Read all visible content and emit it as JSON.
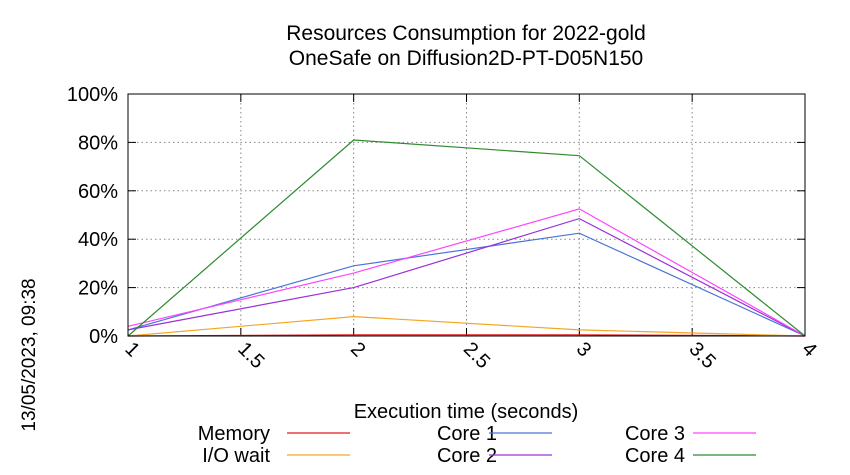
{
  "chart_data": {
    "type": "line",
    "title": "Resources Consumption for 2022-gold",
    "subtitle": "OneSafe on Diffusion2D-PT-D05N150",
    "timestamp": "13/05/2023, 09:38",
    "xlabel": "Execution time (seconds)",
    "ylabel": "",
    "xlim": [
      1,
      4
    ],
    "ylim": [
      0,
      100
    ],
    "x_ticks": [
      1,
      1.5,
      2,
      2.5,
      3,
      3.5,
      4
    ],
    "x_tick_labels": [
      "1",
      "1.5",
      "2",
      "2.5",
      "3",
      "3.5",
      "4"
    ],
    "y_ticks": [
      0,
      20,
      40,
      60,
      80,
      100
    ],
    "y_tick_labels": [
      "0%",
      "20%",
      "40%",
      "60%",
      "80%",
      "100%"
    ],
    "grid": true,
    "legend_position": "bottom",
    "x": [
      1,
      2,
      3,
      4
    ],
    "series": [
      {
        "name": "Memory",
        "color": "#e41a1c",
        "values": [
          0,
          0.5,
          0.5,
          0
        ]
      },
      {
        "name": "I/O wait",
        "color": "#f5a623",
        "values": [
          0,
          8,
          2.5,
          0
        ]
      },
      {
        "name": "Core 1",
        "color": "#4a74d8",
        "values": [
          2.5,
          29,
          42.5,
          0
        ]
      },
      {
        "name": "Core 2",
        "color": "#9b30d9",
        "values": [
          2.5,
          20,
          48.5,
          0
        ]
      },
      {
        "name": "Core 3",
        "color": "#ff44ff",
        "values": [
          4,
          26,
          52.5,
          0
        ]
      },
      {
        "name": "Core 4",
        "color": "#2e8b2e",
        "values": [
          0,
          81,
          74.5,
          0
        ]
      }
    ]
  }
}
